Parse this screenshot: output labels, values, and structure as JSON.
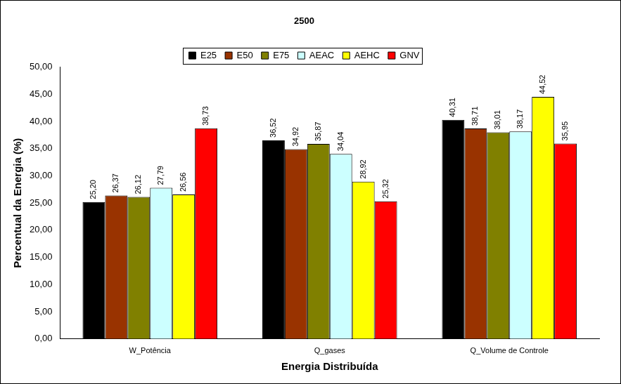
{
  "chart_data": {
    "type": "bar",
    "title": "2500",
    "x_label": "Energia Distribuída",
    "y_label": "Percentual da Energia (%)",
    "categories": [
      "W_Potência",
      "Q_gases",
      "Q_Volume de Controle"
    ],
    "series": [
      {
        "name": "E25",
        "color": "#000000",
        "values": [
          25.2,
          36.52,
          40.31
        ],
        "value_labels": [
          "25,20",
          "36,52",
          "40,31"
        ]
      },
      {
        "name": "E50",
        "color": "#993300",
        "values": [
          26.37,
          34.92,
          38.71
        ],
        "value_labels": [
          "26,37",
          "34,92",
          "38,71"
        ]
      },
      {
        "name": "E75",
        "color": "#808000",
        "values": [
          26.12,
          35.87,
          38.01
        ],
        "value_labels": [
          "26,12",
          "35,87",
          "38,01"
        ]
      },
      {
        "name": "AEAC",
        "color": "#CCFFFF",
        "values": [
          27.79,
          34.04,
          38.17
        ],
        "value_labels": [
          "27,79",
          "34,04",
          "38,17"
        ]
      },
      {
        "name": "AEHC",
        "color": "#FFFF00",
        "values": [
          26.56,
          28.92,
          44.52
        ],
        "value_labels": [
          "26,56",
          "28,92",
          "44,52"
        ]
      },
      {
        "name": "GNV",
        "color": "#FF0000",
        "values": [
          38.73,
          25.32,
          35.95
        ],
        "value_labels": [
          "38,73",
          "25,32",
          "35,95"
        ]
      }
    ],
    "ylim": [
      0,
      50
    ],
    "yticks": [
      {
        "value": 0,
        "label": "0,00"
      },
      {
        "value": 5,
        "label": "5,00"
      },
      {
        "value": 10,
        "label": "10,00"
      },
      {
        "value": 15,
        "label": "15,00"
      },
      {
        "value": 20,
        "label": "20,00"
      },
      {
        "value": 25,
        "label": "25,00"
      },
      {
        "value": 30,
        "label": "30,00"
      },
      {
        "value": 35,
        "label": "35,00"
      },
      {
        "value": 40,
        "label": "40,00"
      },
      {
        "value": 45,
        "label": "45,00"
      },
      {
        "value": 50,
        "label": "50,00"
      }
    ],
    "grid": false,
    "legend": "top",
    "data_labels": true
  }
}
